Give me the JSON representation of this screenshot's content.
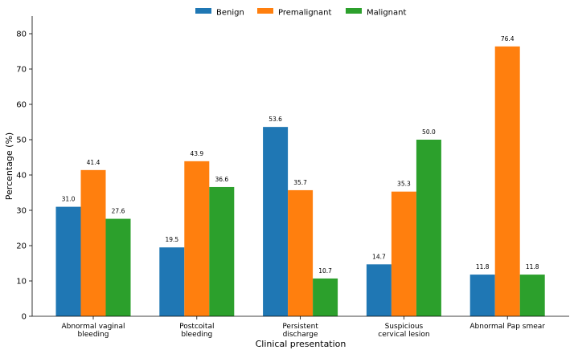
{
  "chart_data": {
    "type": "bar",
    "categories": [
      [
        "Abnormal vaginal",
        "bleeding"
      ],
      [
        "Postcoital",
        "bleeding"
      ],
      [
        "Persistent",
        "discharge"
      ],
      [
        "Suspicious",
        "cervical lesion"
      ],
      [
        "Abnormal Pap smear"
      ]
    ],
    "series": [
      {
        "name": "Benign",
        "color": "#1f77b4",
        "values": [
          31.0,
          19.5,
          53.6,
          14.7,
          11.8
        ]
      },
      {
        "name": "Premalignant",
        "color": "#ff7f0e",
        "values": [
          41.4,
          43.9,
          35.7,
          35.3,
          76.4
        ]
      },
      {
        "name": "Malignant",
        "color": "#2ca02c",
        "values": [
          27.6,
          36.6,
          10.7,
          50.0,
          11.8
        ]
      }
    ],
    "xlabel": "Clinical presentation",
    "ylabel": "Percentage (%)",
    "ylim": [
      0,
      85
    ],
    "yticks": [
      0,
      10,
      20,
      30,
      40,
      50,
      60,
      70,
      80
    ],
    "legend_position": "top-center",
    "grid": false
  }
}
